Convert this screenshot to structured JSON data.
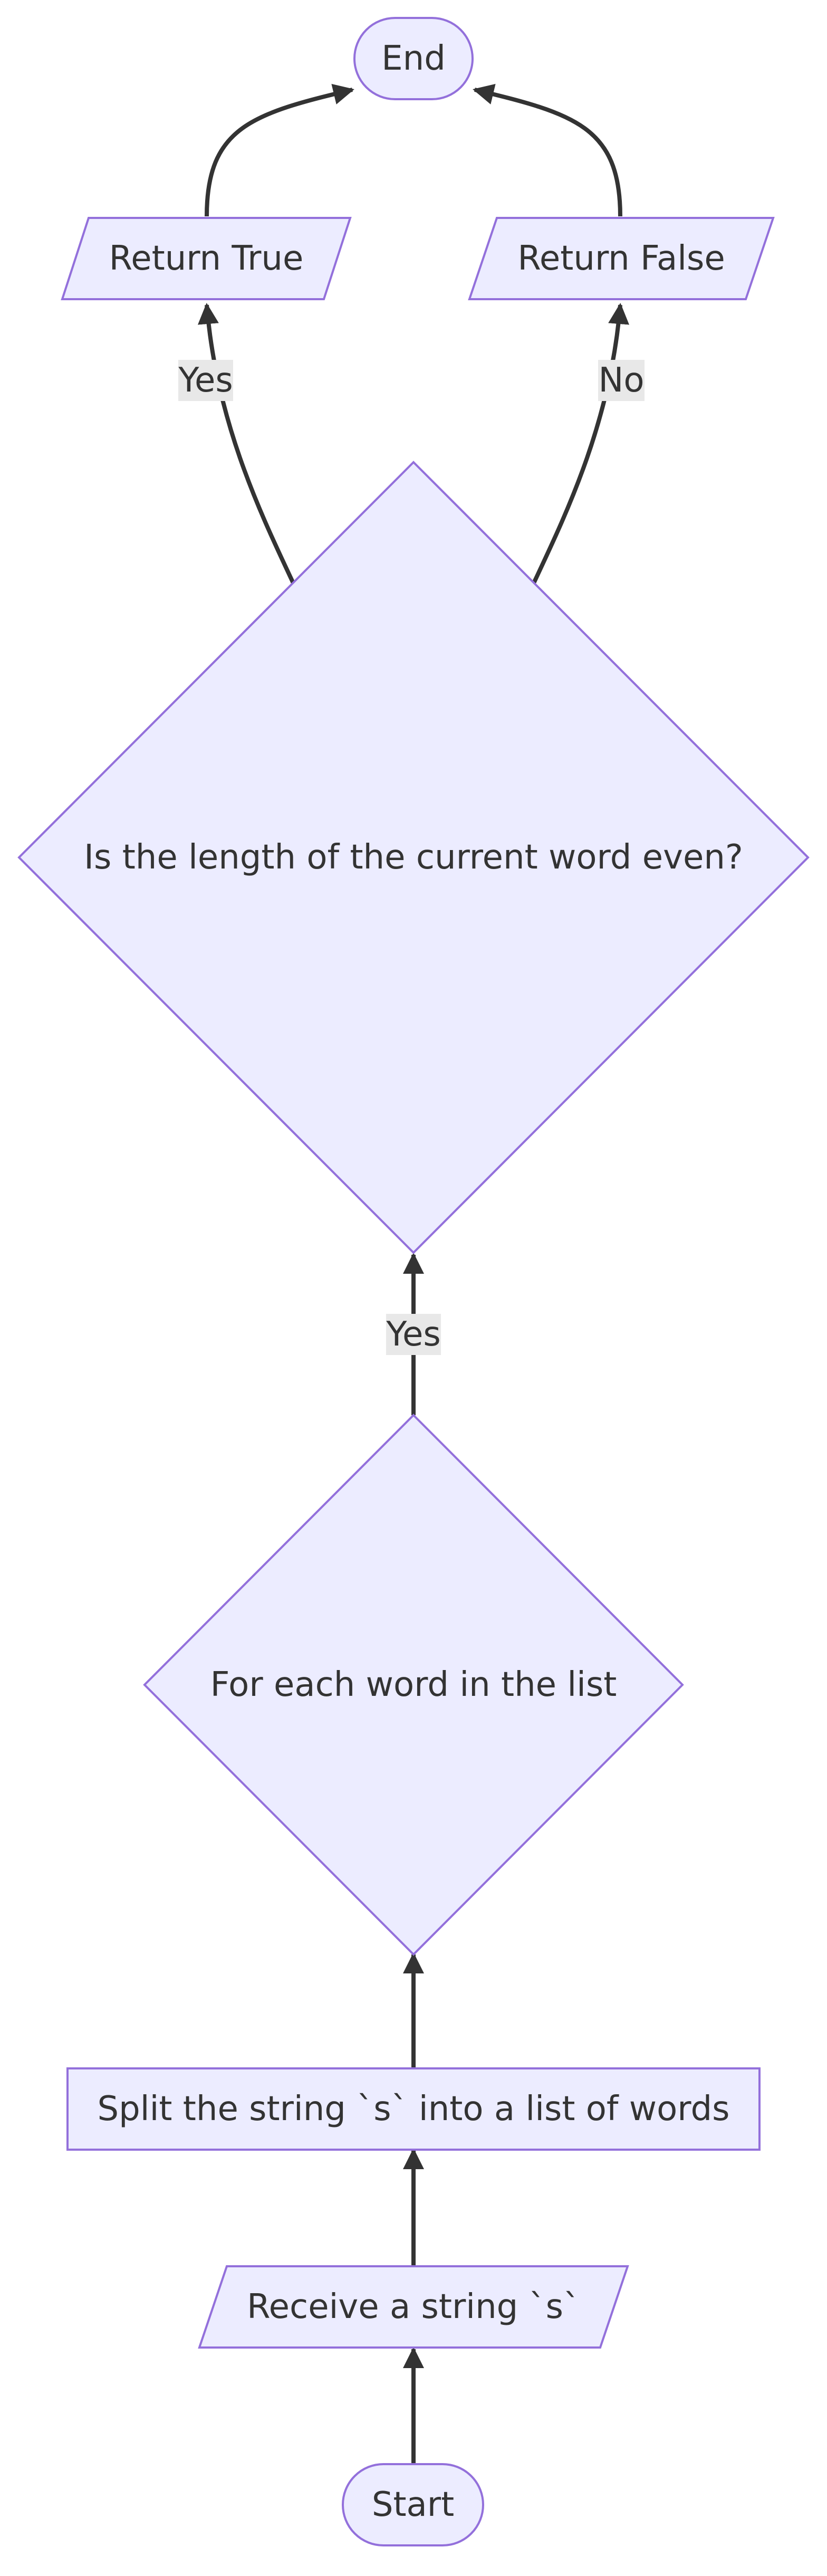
{
  "nodes": {
    "start": "Start",
    "receive": "Receive a string `s`",
    "split": "Split the string `s` into a list of words",
    "foreach": "For each word in the list",
    "is_even": "Is the length of the current word even?",
    "return_true": "Return True",
    "return_false": "Return False",
    "end": "End"
  },
  "edges": {
    "foreach_to_iseven": "Yes",
    "iseven_to_true": "Yes",
    "iseven_to_false": "No"
  }
}
